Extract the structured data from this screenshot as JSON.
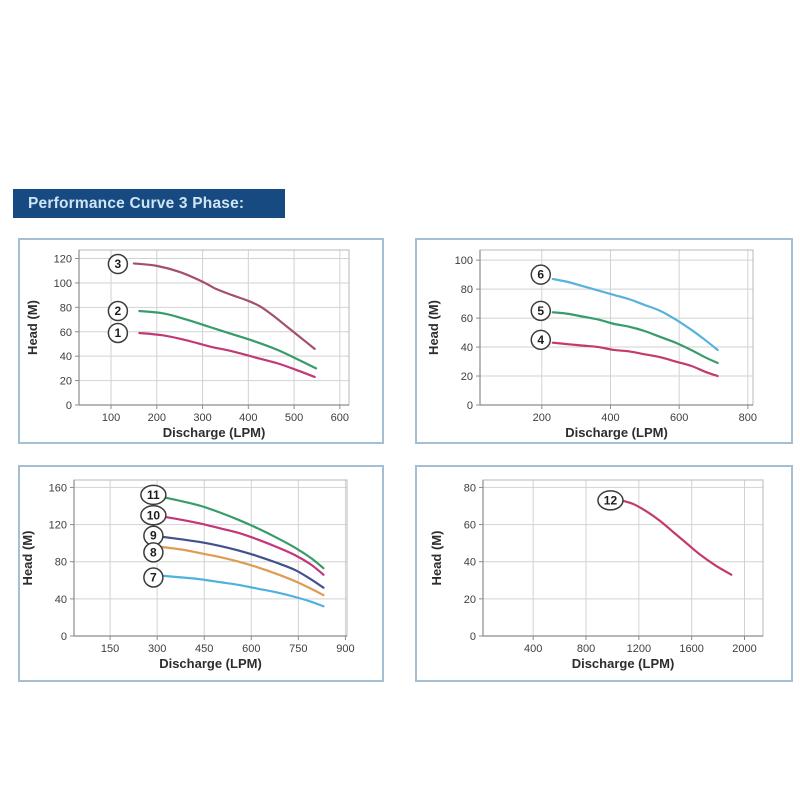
{
  "header": {
    "title": "Performance Curve 3 Phase:",
    "bg_color": "#174a80",
    "text_color": "#cde5f5"
  },
  "axis_style": {
    "grid_color": "#d2d2d2",
    "box_color": "#b8b8b8",
    "axis_color": "#8c8c8c",
    "tick_text_color": "#3e3e3e",
    "axis_title_color": "#2d2d2d",
    "curve_label_stroke": "#3c3c3c",
    "curve_label_text": "#1c1c1c"
  },
  "chart_data": [
    {
      "id": "chart-1",
      "type": "line",
      "title": "",
      "xlabel": "Discharge (LPM)",
      "ylabel": "Head (M)",
      "xlim": [
        30,
        620
      ],
      "ylim": [
        0,
        127
      ],
      "xticks": [
        100,
        200,
        300,
        400,
        500,
        600
      ],
      "yticks": [
        0,
        20,
        40,
        60,
        80,
        100,
        120
      ],
      "grid": true,
      "legend_position": "circled-numbers-at-curve-start",
      "series": [
        {
          "name": "3",
          "color": "#a5506a",
          "label_pos": [
            115,
            115.5
          ],
          "points": [
            [
              150,
              116
            ],
            [
              200,
              114
            ],
            [
              250,
              109
            ],
            [
              300,
              101
            ],
            [
              330,
              95
            ],
            [
              365,
              90
            ],
            [
              395,
              86
            ],
            [
              425,
              81
            ],
            [
              455,
              73
            ],
            [
              485,
              64
            ],
            [
              515,
              55
            ],
            [
              545,
              46
            ]
          ]
        },
        {
          "name": "2",
          "color": "#379c69",
          "label_pos": [
            115,
            77
          ],
          "points": [
            [
              162,
              77
            ],
            [
              215,
              75
            ],
            [
              265,
              70
            ],
            [
              315,
              64
            ],
            [
              365,
              58
            ],
            [
              415,
              52
            ],
            [
              465,
              45
            ],
            [
              510,
              37
            ],
            [
              548,
              30
            ]
          ]
        },
        {
          "name": "1",
          "color": "#c13a78",
          "label_pos": [
            115,
            59
          ],
          "points": [
            [
              162,
              59
            ],
            [
              215,
              57
            ],
            [
              265,
              53
            ],
            [
              315,
              48
            ],
            [
              365,
              44
            ],
            [
              415,
              39
            ],
            [
              465,
              34
            ],
            [
              510,
              28
            ],
            [
              545,
              23
            ]
          ]
        }
      ]
    },
    {
      "id": "chart-2",
      "type": "line",
      "title": "",
      "xlabel": "Discharge (LPM)",
      "ylabel": "Head (M)",
      "xlim": [
        20,
        815
      ],
      "ylim": [
        0,
        107
      ],
      "xticks": [
        200,
        400,
        600,
        800
      ],
      "yticks": [
        0,
        20,
        40,
        60,
        80,
        100
      ],
      "grid": true,
      "legend_position": "circled-numbers-at-curve-start",
      "series": [
        {
          "name": "6",
          "color": "#58b3dc",
          "label_pos": [
            197,
            90
          ],
          "points": [
            [
              232,
              87
            ],
            [
              275,
              85
            ],
            [
              320,
              82
            ],
            [
              365,
              79
            ],
            [
              410,
              76
            ],
            [
              455,
              73
            ],
            [
              500,
              69
            ],
            [
              545,
              65
            ],
            [
              590,
              59
            ],
            [
              635,
              52
            ],
            [
              675,
              45
            ],
            [
              712,
              38
            ]
          ]
        },
        {
          "name": "5",
          "color": "#379c69",
          "label_pos": [
            197,
            65
          ],
          "points": [
            [
              232,
              64
            ],
            [
              275,
              63
            ],
            [
              320,
              61
            ],
            [
              365,
              59
            ],
            [
              410,
              56
            ],
            [
              455,
              54
            ],
            [
              500,
              51
            ],
            [
              545,
              47
            ],
            [
              590,
              43
            ],
            [
              635,
              38
            ],
            [
              675,
              33
            ],
            [
              712,
              29
            ]
          ]
        },
        {
          "name": "4",
          "color": "#c23a6e",
          "label_pos": [
            197,
            45
          ],
          "points": [
            [
              232,
              43
            ],
            [
              275,
              42
            ],
            [
              320,
              41
            ],
            [
              365,
              40
            ],
            [
              410,
              38
            ],
            [
              455,
              37
            ],
            [
              500,
              35
            ],
            [
              545,
              33
            ],
            [
              590,
              30
            ],
            [
              635,
              27
            ],
            [
              675,
              23
            ],
            [
              712,
              20
            ]
          ]
        }
      ]
    },
    {
      "id": "chart-3",
      "type": "line",
      "title": "",
      "xlabel": "Discharge (LPM)",
      "ylabel": "Head (M)",
      "xlim": [
        35,
        905
      ],
      "ylim": [
        0,
        168
      ],
      "xticks": [
        150,
        300,
        450,
        600,
        750,
        900
      ],
      "yticks": [
        0,
        40,
        80,
        120,
        160
      ],
      "grid": true,
      "legend_position": "circled-numbers-at-curve-start",
      "series": [
        {
          "name": "11",
          "color": "#379c69",
          "label_pos": [
            288,
            152
          ],
          "points": [
            [
              312,
              150
            ],
            [
              380,
              145
            ],
            [
              440,
              140
            ],
            [
              500,
              133
            ],
            [
              560,
              125
            ],
            [
              620,
              116
            ],
            [
              680,
              106
            ],
            [
              740,
              95
            ],
            [
              790,
              84
            ],
            [
              830,
              73
            ]
          ]
        },
        {
          "name": "10",
          "color": "#c4357b",
          "label_pos": [
            288,
            130
          ],
          "points": [
            [
              312,
              129
            ],
            [
              380,
              125
            ],
            [
              440,
              121
            ],
            [
              500,
              116
            ],
            [
              560,
              111
            ],
            [
              620,
              104
            ],
            [
              680,
              96
            ],
            [
              740,
              87
            ],
            [
              790,
              77
            ],
            [
              830,
              66
            ]
          ]
        },
        {
          "name": "9",
          "color": "#41508f",
          "label_pos": [
            288,
            108
          ],
          "points": [
            [
              312,
              107
            ],
            [
              380,
              104
            ],
            [
              440,
              101
            ],
            [
              500,
              97
            ],
            [
              560,
              92
            ],
            [
              620,
              86
            ],
            [
              680,
              79
            ],
            [
              740,
              71
            ],
            [
              790,
              61
            ],
            [
              830,
              52
            ]
          ]
        },
        {
          "name": "8",
          "color": "#de9b52",
          "label_pos": [
            288,
            90
          ],
          "points": [
            [
              312,
              96
            ],
            [
              380,
              93
            ],
            [
              440,
              89
            ],
            [
              500,
              85
            ],
            [
              560,
              80
            ],
            [
              620,
              74
            ],
            [
              680,
              67
            ],
            [
              740,
              59
            ],
            [
              790,
              51
            ],
            [
              830,
              44
            ]
          ]
        },
        {
          "name": "7",
          "color": "#4fb2dc",
          "label_pos": [
            288,
            63
          ],
          "points": [
            [
              312,
              65
            ],
            [
              380,
              63
            ],
            [
              440,
              61
            ],
            [
              500,
              58
            ],
            [
              560,
              55
            ],
            [
              620,
              51
            ],
            [
              680,
              47
            ],
            [
              740,
              42
            ],
            [
              790,
              37
            ],
            [
              830,
              32
            ]
          ]
        }
      ]
    },
    {
      "id": "chart-4",
      "type": "line",
      "title": "",
      "xlabel": "Discharge (LPM)",
      "ylabel": "Head (M)",
      "xlim": [
        20,
        2140
      ],
      "ylim": [
        0,
        84
      ],
      "xticks": [
        400,
        800,
        1200,
        1600,
        2000
      ],
      "yticks": [
        0,
        20,
        40,
        60,
        80
      ],
      "grid": true,
      "legend_position": "circled-numbers-at-curve-start",
      "series": [
        {
          "name": "12",
          "color": "#c23a6e",
          "label_pos": [
            985,
            73
          ],
          "points": [
            [
              1070,
              73
            ],
            [
              1160,
              71
            ],
            [
              1260,
              67
            ],
            [
              1360,
              62
            ],
            [
              1460,
              56
            ],
            [
              1560,
              50
            ],
            [
              1660,
              44
            ],
            [
              1780,
              38
            ],
            [
              1900,
              33
            ]
          ]
        }
      ]
    }
  ]
}
